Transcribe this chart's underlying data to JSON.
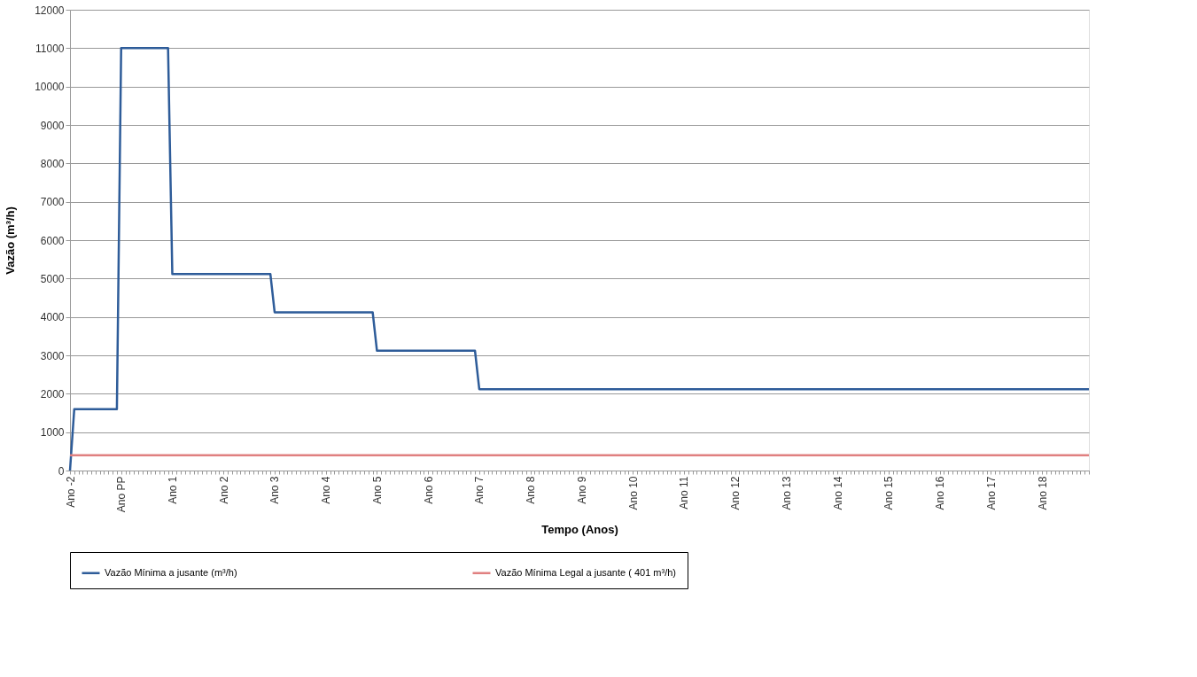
{
  "chart_data": {
    "type": "line",
    "xlabel": "Tempo (Anos)",
    "ylabel": "Vazão (m³/h)",
    "ylim": [
      0,
      12000
    ],
    "yticks": [
      0,
      1000,
      2000,
      3000,
      4000,
      5000,
      6000,
      7000,
      8000,
      9000,
      10000,
      11000,
      12000
    ],
    "grid": "y",
    "legend": "bottom",
    "marker": "none",
    "line_style": "solid",
    "categories": [
      "Ano -2",
      null,
      null,
      null,
      null,
      null,
      null,
      null,
      null,
      null,
      null,
      null,
      "Ano  PP",
      null,
      null,
      null,
      null,
      null,
      null,
      null,
      null,
      null,
      null,
      null,
      "Ano 1",
      null,
      null,
      null,
      null,
      null,
      null,
      null,
      null,
      null,
      null,
      null,
      "Ano 2",
      null,
      null,
      null,
      null,
      null,
      null,
      null,
      null,
      null,
      null,
      null,
      "Ano 3",
      null,
      null,
      null,
      null,
      null,
      null,
      null,
      null,
      null,
      null,
      null,
      "Ano 4",
      null,
      null,
      null,
      null,
      null,
      null,
      null,
      null,
      null,
      null,
      null,
      "Ano 5",
      null,
      null,
      null,
      null,
      null,
      null,
      null,
      null,
      null,
      null,
      null,
      "Ano 6",
      null,
      null,
      null,
      null,
      null,
      null,
      null,
      null,
      null,
      null,
      null,
      "Ano 7",
      null,
      null,
      null,
      null,
      null,
      null,
      null,
      null,
      null,
      null,
      null,
      "Ano 8",
      null,
      null,
      null,
      null,
      null,
      null,
      null,
      null,
      null,
      null,
      null,
      "Ano 9",
      null,
      null,
      null,
      null,
      null,
      null,
      null,
      null,
      null,
      null,
      null,
      "Ano 10",
      null,
      null,
      null,
      null,
      null,
      null,
      null,
      null,
      null,
      null,
      null,
      "Ano 11",
      null,
      null,
      null,
      null,
      null,
      null,
      null,
      null,
      null,
      null,
      null,
      "Ano 12",
      null,
      null,
      null,
      null,
      null,
      null,
      null,
      null,
      null,
      null,
      null,
      "Ano 13",
      null,
      null,
      null,
      null,
      null,
      null,
      null,
      null,
      null,
      null,
      null,
      "Ano 14",
      null,
      null,
      null,
      null,
      null,
      null,
      null,
      null,
      null,
      null,
      null,
      "Ano 15",
      null,
      null,
      null,
      null,
      null,
      null,
      null,
      null,
      null,
      null,
      null,
      "Ano 16",
      null,
      null,
      null,
      null,
      null,
      null,
      null,
      null,
      null,
      null,
      null,
      "Ano 17",
      null,
      null,
      null,
      null,
      null,
      null,
      null,
      null,
      null,
      null,
      null,
      "Ano 18",
      null,
      null,
      null,
      null,
      null,
      null,
      null,
      null,
      null,
      null,
      null
    ],
    "series": [
      {
        "name": "Vazão Mínima a jusante (m³/h)",
        "color": "#2e5c99",
        "values": [
          0,
          1600,
          1600,
          1600,
          1600,
          1600,
          1600,
          1600,
          1600,
          1600,
          1600,
          1600,
          11000,
          11000,
          11000,
          11000,
          11000,
          11000,
          11000,
          11000,
          11000,
          11000,
          11000,
          11000,
          5120,
          5120,
          5120,
          5120,
          5120,
          5120,
          5120,
          5120,
          5120,
          5120,
          5120,
          5120,
          5120,
          5120,
          5120,
          5120,
          5120,
          5120,
          5120,
          5120,
          5120,
          5120,
          5120,
          5120,
          4120,
          4120,
          4120,
          4120,
          4120,
          4120,
          4120,
          4120,
          4120,
          4120,
          4120,
          4120,
          4120,
          4120,
          4120,
          4120,
          4120,
          4120,
          4120,
          4120,
          4120,
          4120,
          4120,
          4120,
          3120,
          3120,
          3120,
          3120,
          3120,
          3120,
          3120,
          3120,
          3120,
          3120,
          3120,
          3120,
          3120,
          3120,
          3120,
          3120,
          3120,
          3120,
          3120,
          3120,
          3120,
          3120,
          3120,
          3120,
          2120,
          2120,
          2120,
          2120,
          2120,
          2120,
          2120,
          2120,
          2120,
          2120,
          2120,
          2120,
          2120,
          2120,
          2120,
          2120,
          2120,
          2120,
          2120,
          2120,
          2120,
          2120,
          2120,
          2120,
          2120,
          2120,
          2120,
          2120,
          2120,
          2120,
          2120,
          2120,
          2120,
          2120,
          2120,
          2120,
          2120,
          2120,
          2120,
          2120,
          2120,
          2120,
          2120,
          2120,
          2120,
          2120,
          2120,
          2120,
          2120,
          2120,
          2120,
          2120,
          2120,
          2120,
          2120,
          2120,
          2120,
          2120,
          2120,
          2120,
          2120,
          2120,
          2120,
          2120,
          2120,
          2120,
          2120,
          2120,
          2120,
          2120,
          2120,
          2120,
          2120,
          2120,
          2120,
          2120,
          2120,
          2120,
          2120,
          2120,
          2120,
          2120,
          2120,
          2120,
          2120,
          2120,
          2120,
          2120,
          2120,
          2120,
          2120,
          2120,
          2120,
          2120,
          2120,
          2120,
          2120,
          2120,
          2120,
          2120,
          2120,
          2120,
          2120,
          2120,
          2120,
          2120,
          2120,
          2120,
          2120,
          2120,
          2120,
          2120,
          2120,
          2120,
          2120,
          2120,
          2120,
          2120,
          2120,
          2120,
          2120,
          2120,
          2120,
          2120,
          2120,
          2120,
          2120,
          2120,
          2120,
          2120,
          2120,
          2120,
          2120,
          2120,
          2120,
          2120,
          2120,
          2120,
          2120,
          2120,
          2120,
          2120,
          2120,
          2120
        ]
      },
      {
        "name": "Vazão Mínima Legal a jusante ( 401 m³/h)",
        "color": "#e08080",
        "values": [
          400,
          400,
          400,
          400,
          400,
          400,
          400,
          400,
          400,
          400,
          400,
          400,
          400,
          400,
          400,
          400,
          400,
          400,
          400,
          400,
          400,
          400,
          400,
          400,
          400,
          400,
          400,
          400,
          400,
          400,
          400,
          400,
          400,
          400,
          400,
          400,
          400,
          400,
          400,
          400,
          400,
          400,
          400,
          400,
          400,
          400,
          400,
          400,
          400,
          400,
          400,
          400,
          400,
          400,
          400,
          400,
          400,
          400,
          400,
          400,
          400,
          400,
          400,
          400,
          400,
          400,
          400,
          400,
          400,
          400,
          400,
          400,
          400,
          400,
          400,
          400,
          400,
          400,
          400,
          400,
          400,
          400,
          400,
          400,
          400,
          400,
          400,
          400,
          400,
          400,
          400,
          400,
          400,
          400,
          400,
          400,
          400,
          400,
          400,
          400,
          400,
          400,
          400,
          400,
          400,
          400,
          400,
          400,
          400,
          400,
          400,
          400,
          400,
          400,
          400,
          400,
          400,
          400,
          400,
          400,
          400,
          400,
          400,
          400,
          400,
          400,
          400,
          400,
          400,
          400,
          400,
          400,
          400,
          400,
          400,
          400,
          400,
          400,
          400,
          400,
          400,
          400,
          400,
          400,
          400,
          400,
          400,
          400,
          400,
          400,
          400,
          400,
          400,
          400,
          400,
          400,
          400,
          400,
          400,
          400,
          400,
          400,
          400,
          400,
          400,
          400,
          400,
          400,
          400,
          400,
          400,
          400,
          400,
          400,
          400,
          400,
          400,
          400,
          400,
          400,
          400,
          400,
          400,
          400,
          400,
          400,
          400,
          400,
          400,
          400,
          400,
          400,
          400,
          400,
          400,
          400,
          400,
          400,
          400,
          400,
          400,
          400,
          400,
          400,
          400,
          400,
          400,
          400,
          400,
          400,
          400,
          400,
          400,
          400,
          400,
          400,
          400,
          400,
          400,
          400,
          400,
          400,
          400,
          400,
          400,
          400,
          400,
          400,
          400,
          400,
          400,
          400,
          400,
          400,
          400,
          400,
          400,
          400,
          400,
          400
        ]
      }
    ]
  }
}
